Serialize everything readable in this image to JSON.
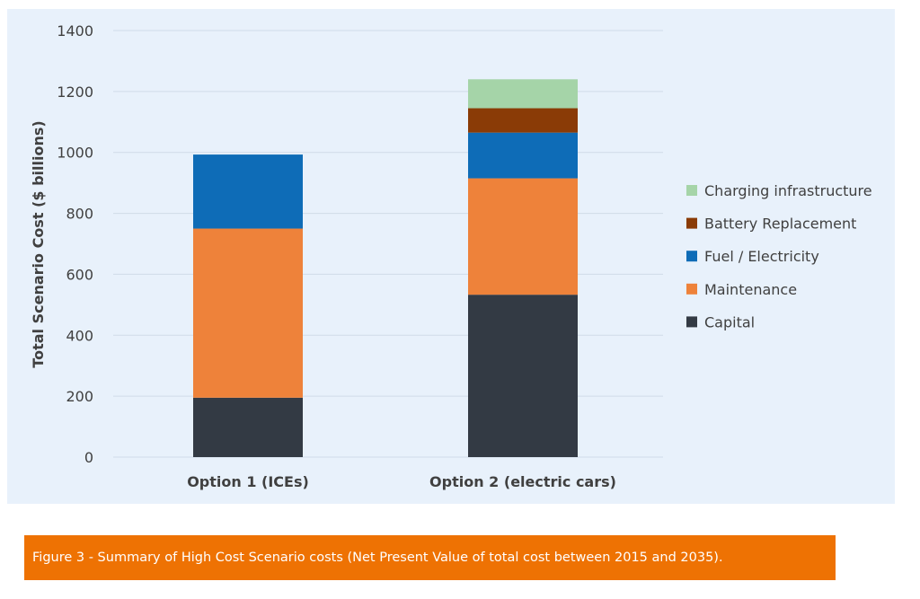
{
  "chart_data": {
    "type": "bar",
    "stacked": true,
    "categories": [
      "Option 1 (ICEs)",
      "Option 2 (electric cars)"
    ],
    "series": [
      {
        "name": "Capital",
        "color": "#333a44",
        "values": [
          195,
          533
        ]
      },
      {
        "name": "Maintenance",
        "color": "#ee823a",
        "values": [
          555,
          382
        ]
      },
      {
        "name": "Fuel / Electricity",
        "color": "#0e6cb7",
        "values": [
          243,
          150
        ]
      },
      {
        "name": "Battery Replacement",
        "color": "#8a3b06",
        "values": [
          0,
          80
        ]
      },
      {
        "name": "Charging infrastructure",
        "color": "#a5d4a8",
        "values": [
          0,
          95
        ]
      }
    ],
    "title": "",
    "xlabel": "",
    "ylabel": "Total Scenario Cost ($ billions)",
    "ylim": [
      0,
      1400
    ],
    "yticks": [
      "0",
      "200",
      "400",
      "600",
      "800",
      "1000",
      "1200",
      "1400"
    ],
    "grid": true,
    "legend_position": "right",
    "legend_order": [
      "Charging infrastructure",
      "Battery Replacement",
      "Fuel / Electricity",
      "Maintenance",
      "Capital"
    ]
  },
  "caption": {
    "text": "Figure 3 - Summary of High Cost Scenario costs (Net Present Value of total cost between 2015 and 2035).",
    "background": "#ee7203"
  },
  "colors": {
    "panel_background": "#e8f1fb",
    "gridline": "#d0dbe8",
    "text": "#404040"
  }
}
